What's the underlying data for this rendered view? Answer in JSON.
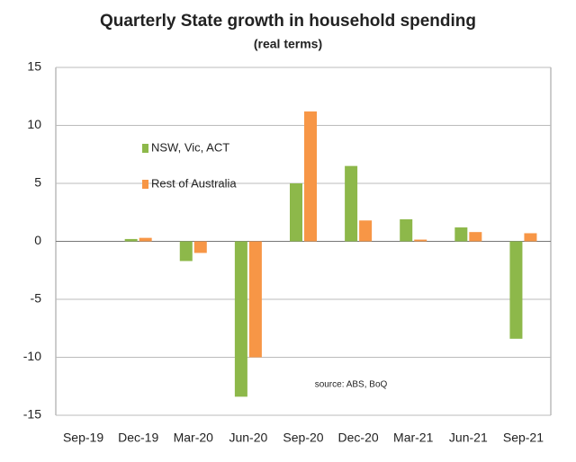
{
  "chart_data": {
    "type": "bar",
    "title": "Quarterly  State growth in household spending",
    "subtitle": "(real terms)",
    "annotation": "source:  ABS, BoQ",
    "categories": [
      "Sep-19",
      "Dec-19",
      "Mar-20",
      "Jun-20",
      "Sep-20",
      "Dec-20",
      "Mar-21",
      "Jun-21",
      "Sep-21"
    ],
    "series": [
      {
        "name": "NSW, Vic, ACT",
        "color": "#8db84a",
        "values": [
          null,
          0.2,
          -1.7,
          -13.4,
          5.0,
          6.5,
          1.9,
          1.2,
          -8.4
        ]
      },
      {
        "name": "Rest of Australia",
        "color": "#f79646",
        "values": [
          null,
          0.3,
          -1.0,
          -10.0,
          11.2,
          1.8,
          0.15,
          0.8,
          0.7
        ]
      }
    ],
    "ylim": [
      -15,
      15
    ],
    "yticks": [
      -15,
      -10,
      -5,
      0,
      5,
      10,
      15
    ],
    "grid": true
  }
}
